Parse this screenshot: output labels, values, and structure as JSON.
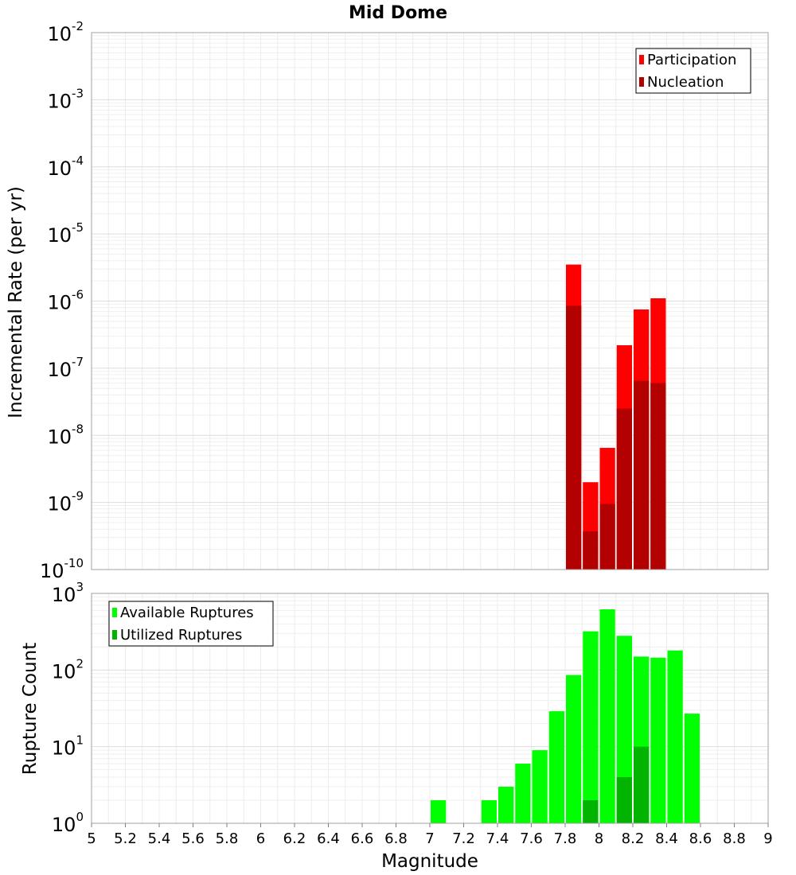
{
  "chart_data": [
    {
      "type": "bar",
      "title": "Mid Dome",
      "xlabel": "",
      "ylabel": "Incremental Rate (per yr)",
      "yscale": "log",
      "ylim": [
        1e-10,
        0.01
      ],
      "xlim": [
        5,
        9
      ],
      "grid": true,
      "legend_position": "top-right",
      "y_tick_exponents": [
        "-10",
        "-9",
        "-8",
        "-7",
        "-6",
        "-5",
        "-4",
        "-3",
        "-2"
      ],
      "y_tick_base": "10",
      "x": [
        7.85,
        7.95,
        8.05,
        8.15,
        8.25,
        8.35
      ],
      "series": [
        {
          "name": "Participation",
          "color": "#ff0000",
          "values": [
            3.5e-06,
            2e-09,
            6.5e-09,
            2.2e-07,
            7.5e-07,
            1.1e-06
          ]
        },
        {
          "name": "Nucleation",
          "color": "#b30000",
          "values": [
            8.5e-07,
            3.7e-10,
            9.5e-10,
            2.5e-08,
            6.5e-08,
            6e-08
          ]
        }
      ]
    },
    {
      "type": "bar",
      "xlabel": "Magnitude",
      "ylabel": "Rupture Count",
      "yscale": "log",
      "ylim": [
        1,
        1000
      ],
      "xlim": [
        5,
        9
      ],
      "grid": true,
      "legend_position": "top-left",
      "y_tick_exponents": [
        "0",
        "1",
        "2",
        "3"
      ],
      "y_tick_base": "10",
      "x_ticks": [
        "5",
        "5.2",
        "5.4",
        "5.6",
        "5.8",
        "6",
        "6.2",
        "6.4",
        "6.6",
        "6.8",
        "7",
        "7.2",
        "7.4",
        "7.6",
        "7.8",
        "8",
        "8.2",
        "8.4",
        "8.6",
        "8.8",
        "9"
      ],
      "series": [
        {
          "name": "Available Ruptures",
          "color": "#00ff00",
          "x": [
            7.05,
            7.25,
            7.35,
            7.45,
            7.55,
            7.65,
            7.75,
            7.85,
            7.95,
            8.05,
            8.15,
            8.25,
            8.35,
            8.45,
            8.55
          ],
          "values": [
            2,
            1,
            2,
            3,
            6,
            9,
            29,
            86,
            320,
            620,
            280,
            150,
            145,
            180,
            27
          ]
        },
        {
          "name": "Utilized Ruptures",
          "color": "#00b400",
          "x": [
            7.85,
            7.95,
            8.05,
            8.15,
            8.25,
            8.35
          ],
          "values": [
            1,
            2,
            1,
            4,
            10,
            1
          ]
        }
      ]
    }
  ]
}
